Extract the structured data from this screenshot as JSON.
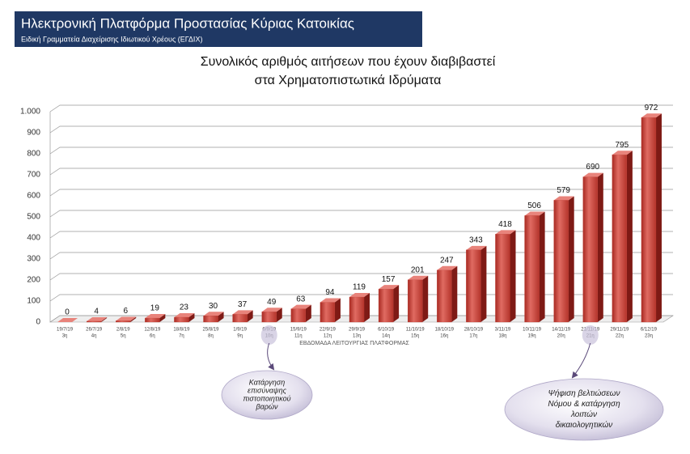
{
  "header": {
    "title": "Ηλεκτρονική Πλατφόρμα Προστασίας Κύριας Κατοικίας",
    "subtitle": "Ειδική Γραμματεία Διαχείρισης Ιδιωτικού Χρέους (ΕΓΔΙΧ)"
  },
  "chart_data": {
    "type": "bar",
    "title": [
      "Συνολικός αριθμός αιτήσεων που έχουν διαβιβαστεί",
      "στα Χρηματοπιστωτικά Ιδρύματα"
    ],
    "x_label": "ΕΒΔΟΜΑΔΑ ΛΕΙΤΟΥΡΓΙΑΣ ΠΛΑΤΦΟΡΜΑΣ",
    "categories": [
      "19/7/19",
      "26/7/19",
      "2/8/19",
      "12/8/19",
      "18/8/19",
      "25/8/19",
      "1/9/19",
      "6/9/19",
      "15/9/19",
      "22/9/19",
      "29/9/19",
      "6/10/19",
      "11/10/19",
      "18/10/19",
      "28/10/19",
      "3/11/19",
      "10/11/19",
      "14/11/19",
      "21/11/19",
      "29/11/19",
      "6/12/19"
    ],
    "weeks": [
      "3η",
      "4η",
      "5η",
      "6η",
      "7η",
      "8η",
      "9η",
      "10η",
      "11η",
      "12η",
      "13η",
      "14η",
      "15η",
      "16η",
      "17η",
      "18η",
      "19η",
      "20η",
      "21η",
      "22η",
      "23η"
    ],
    "values": [
      0,
      4,
      6,
      19,
      23,
      30,
      37,
      49,
      63,
      94,
      119,
      157,
      201,
      247,
      343,
      418,
      506,
      579,
      690,
      795,
      972
    ],
    "color": "#c0392f",
    "ylim": [
      0,
      1000
    ],
    "yticks": [
      0,
      100,
      200,
      300,
      400,
      500,
      600,
      700,
      800,
      900,
      {
        "value": 1000,
        "label": "1.000"
      }
    ],
    "grid": true,
    "annotations": [
      {
        "lines": [
          "Κατάργηση",
          "επισύναψης",
          "πιστοποιητικού",
          "βαρών"
        ]
      },
      {
        "lines": [
          "Ψήφιση βελτιώσεων",
          "Νόμου & κατάργηση",
          "λοιπών",
          "δικαιολογητικών"
        ]
      }
    ]
  }
}
